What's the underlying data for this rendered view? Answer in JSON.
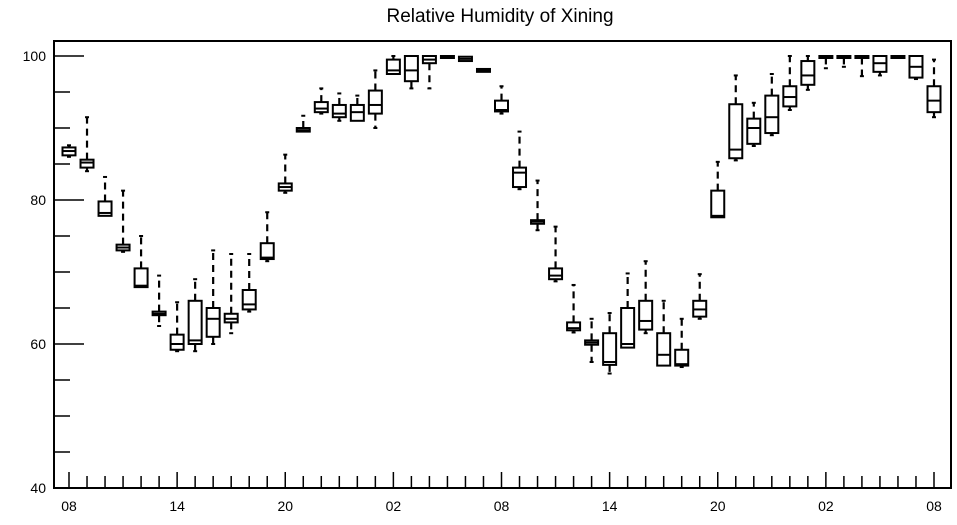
{
  "chart_data": {
    "type": "box",
    "title": "Relative Humidity of Xining",
    "xlabel": "",
    "ylabel": "",
    "ylim": [
      40,
      102
    ],
    "y_major_ticks": [
      40,
      60,
      80,
      100
    ],
    "y_minor_step": 5,
    "grid": false,
    "legend": "none",
    "x_tick_labels": [
      "08",
      "14",
      "20",
      "02",
      "08",
      "14",
      "20",
      "02",
      "08"
    ],
    "x_tick_label_slots": [
      0,
      6,
      12,
      18,
      24,
      30,
      36,
      42,
      48
    ],
    "slot_count": 49,
    "boxes": [
      {
        "slot": 0,
        "whisker_low": 86.0,
        "q1": 86.2,
        "median": 86.8,
        "q3": 87.3,
        "whisker_high": 87.6
      },
      {
        "slot": 1,
        "whisker_low": 84.0,
        "q1": 84.5,
        "median": 85.2,
        "q3": 85.6,
        "whisker_high": 91.5
      },
      {
        "slot": 2,
        "whisker_low": 77.8,
        "q1": 77.8,
        "median": 78.2,
        "q3": 79.8,
        "whisker_high": 83.2
      },
      {
        "slot": 3,
        "whisker_low": 72.8,
        "q1": 73.0,
        "median": 73.4,
        "q3": 73.8,
        "whisker_high": 81.3
      },
      {
        "slot": 4,
        "whisker_low": 67.8,
        "q1": 67.9,
        "median": 68.1,
        "q3": 70.5,
        "whisker_high": 75.0
      },
      {
        "slot": 5,
        "whisker_low": 62.5,
        "q1": 64.0,
        "median": 64.2,
        "q3": 64.5,
        "whisker_high": 69.5
      },
      {
        "slot": 6,
        "whisker_low": 59.0,
        "q1": 59.2,
        "median": 60.0,
        "q3": 61.3,
        "whisker_high": 65.8
      },
      {
        "slot": 7,
        "whisker_low": 59.0,
        "q1": 60.0,
        "median": 60.5,
        "q3": 66.0,
        "whisker_high": 69.0
      },
      {
        "slot": 8,
        "whisker_low": 60.0,
        "q1": 61.0,
        "median": 63.5,
        "q3": 65.0,
        "whisker_high": 73.0
      },
      {
        "slot": 9,
        "whisker_low": 61.5,
        "q1": 63.0,
        "median": 63.5,
        "q3": 64.2,
        "whisker_high": 72.5
      },
      {
        "slot": 10,
        "whisker_low": 64.5,
        "q1": 64.8,
        "median": 65.5,
        "q3": 67.5,
        "whisker_high": 72.5
      },
      {
        "slot": 11,
        "whisker_low": 71.5,
        "q1": 71.8,
        "median": 72.0,
        "q3": 74.0,
        "whisker_high": 78.3
      },
      {
        "slot": 12,
        "whisker_low": 81.0,
        "q1": 81.3,
        "median": 81.8,
        "q3": 82.3,
        "whisker_high": 86.3
      },
      {
        "slot": 13,
        "whisker_low": 89.5,
        "q1": 89.5,
        "median": 89.7,
        "q3": 90.0,
        "whisker_high": 91.7
      },
      {
        "slot": 14,
        "whisker_low": 92.0,
        "q1": 92.2,
        "median": 92.7,
        "q3": 93.6,
        "whisker_high": 95.5
      },
      {
        "slot": 15,
        "whisker_low": 91.0,
        "q1": 91.5,
        "median": 92.0,
        "q3": 93.2,
        "whisker_high": 94.8
      },
      {
        "slot": 16,
        "whisker_low": 91.0,
        "q1": 91.0,
        "median": 92.2,
        "q3": 93.2,
        "whisker_high": 94.5
      },
      {
        "slot": 17,
        "whisker_low": 90.0,
        "q1": 92.0,
        "median": 93.2,
        "q3": 95.2,
        "whisker_high": 98.0
      },
      {
        "slot": 18,
        "whisker_low": 97.5,
        "q1": 97.5,
        "median": 98.0,
        "q3": 99.5,
        "whisker_high": 100.0
      },
      {
        "slot": 19,
        "whisker_low": 95.5,
        "q1": 96.5,
        "median": 98.0,
        "q3": 100.0,
        "whisker_high": 100.0
      },
      {
        "slot": 20,
        "whisker_low": 95.5,
        "q1": 99.0,
        "median": 99.5,
        "q3": 100.0,
        "whisker_high": 100.0
      },
      {
        "slot": 21,
        "whisker_low": 99.8,
        "q1": 99.8,
        "median": 100.0,
        "q3": 100.0,
        "whisker_high": 100.0
      },
      {
        "slot": 22,
        "whisker_low": 99.2,
        "q1": 99.3,
        "median": 99.6,
        "q3": 99.9,
        "whisker_high": 100.0
      },
      {
        "slot": 23,
        "whisker_low": 97.7,
        "q1": 97.8,
        "median": 98.0,
        "q3": 98.2,
        "whisker_high": 98.3
      },
      {
        "slot": 24,
        "whisker_low": 92.0,
        "q1": 92.3,
        "median": 92.5,
        "q3": 93.8,
        "whisker_high": 95.8
      },
      {
        "slot": 25,
        "whisker_low": 81.5,
        "q1": 81.8,
        "median": 83.8,
        "q3": 84.5,
        "whisker_high": 89.5
      },
      {
        "slot": 26,
        "whisker_low": 75.8,
        "q1": 76.7,
        "median": 77.0,
        "q3": 77.2,
        "whisker_high": 82.7
      },
      {
        "slot": 27,
        "whisker_low": 68.7,
        "q1": 69.0,
        "median": 69.5,
        "q3": 70.5,
        "whisker_high": 76.3
      },
      {
        "slot": 28,
        "whisker_low": 61.6,
        "q1": 61.9,
        "median": 62.2,
        "q3": 63.0,
        "whisker_high": 68.2
      },
      {
        "slot": 29,
        "whisker_low": 57.5,
        "q1": 59.9,
        "median": 60.2,
        "q3": 60.5,
        "whisker_high": 63.5
      },
      {
        "slot": 30,
        "whisker_low": 55.9,
        "q1": 57.1,
        "median": 57.5,
        "q3": 61.5,
        "whisker_high": 64.3
      },
      {
        "slot": 31,
        "whisker_low": 59.5,
        "q1": 59.5,
        "median": 60.0,
        "q3": 65.0,
        "whisker_high": 69.8
      },
      {
        "slot": 32,
        "whisker_low": 61.5,
        "q1": 62.0,
        "median": 63.2,
        "q3": 66.0,
        "whisker_high": 71.5
      },
      {
        "slot": 33,
        "whisker_low": 57.0,
        "q1": 57.0,
        "median": 58.5,
        "q3": 61.5,
        "whisker_high": 66.0
      },
      {
        "slot": 34,
        "whisker_low": 56.8,
        "q1": 57.0,
        "median": 57.2,
        "q3": 59.2,
        "whisker_high": 63.5
      },
      {
        "slot": 35,
        "whisker_low": 63.5,
        "q1": 63.8,
        "median": 64.8,
        "q3": 66.0,
        "whisker_high": 69.7
      },
      {
        "slot": 36,
        "whisker_low": 77.5,
        "q1": 77.6,
        "median": 77.8,
        "q3": 81.3,
        "whisker_high": 85.3
      },
      {
        "slot": 37,
        "whisker_low": 85.5,
        "q1": 85.8,
        "median": 87.0,
        "q3": 93.3,
        "whisker_high": 97.3
      },
      {
        "slot": 38,
        "whisker_low": 87.5,
        "q1": 87.8,
        "median": 90.0,
        "q3": 91.3,
        "whisker_high": 93.5
      },
      {
        "slot": 39,
        "whisker_low": 89.0,
        "q1": 89.3,
        "median": 91.5,
        "q3": 94.5,
        "whisker_high": 97.5
      },
      {
        "slot": 40,
        "whisker_low": 92.5,
        "q1": 93.0,
        "median": 94.3,
        "q3": 95.8,
        "whisker_high": 100.0
      },
      {
        "slot": 41,
        "whisker_low": 95.3,
        "q1": 96.0,
        "median": 97.3,
        "q3": 99.3,
        "whisker_high": 100.0
      },
      {
        "slot": 42,
        "whisker_low": 98.3,
        "q1": 99.8,
        "median": 100.0,
        "q3": 100.0,
        "whisker_high": 100.0
      },
      {
        "slot": 43,
        "whisker_low": 98.5,
        "q1": 99.8,
        "median": 100.0,
        "q3": 100.0,
        "whisker_high": 100.0
      },
      {
        "slot": 44,
        "whisker_low": 97.2,
        "q1": 99.8,
        "median": 100.0,
        "q3": 100.0,
        "whisker_high": 100.0
      },
      {
        "slot": 45,
        "whisker_low": 97.3,
        "q1": 97.8,
        "median": 99.0,
        "q3": 100.0,
        "whisker_high": 100.0
      },
      {
        "slot": 46,
        "whisker_low": 99.8,
        "q1": 99.8,
        "median": 100.0,
        "q3": 100.0,
        "whisker_high": 100.0
      },
      {
        "slot": 47,
        "whisker_low": 96.8,
        "q1": 97.0,
        "median": 98.5,
        "q3": 100.0,
        "whisker_high": 100.0
      },
      {
        "slot": 48,
        "whisker_low": 91.5,
        "q1": 92.2,
        "median": 93.8,
        "q3": 95.8,
        "whisker_high": 99.5
      }
    ]
  }
}
